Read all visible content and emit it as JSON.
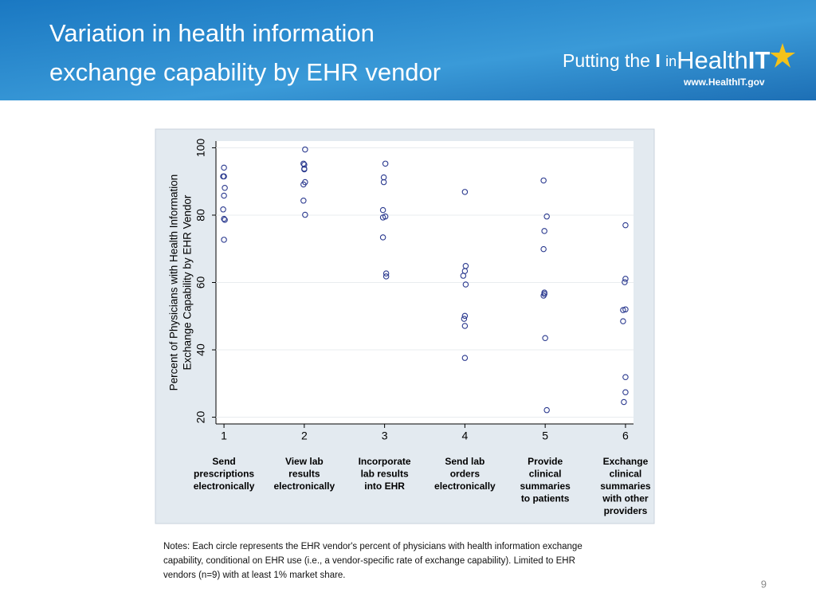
{
  "header": {
    "title": [
      "Variation in health information",
      "exchange capability by EHR vendor"
    ],
    "logo": {
      "putting": "Putting the",
      "i": "I",
      "in": "in",
      "health": "Health",
      "it": "IT",
      "url": "www.HealthIT.gov"
    }
  },
  "chart_data": {
    "type": "scatter",
    "ylabel": [
      "Percent of Physicians with Health Information",
      "Exchange Capability by EHR Vendor"
    ],
    "xlim": [
      0.9,
      6.1
    ],
    "xticks": [
      1,
      2,
      3,
      4,
      5,
      6
    ],
    "ylim": [
      18,
      102
    ],
    "yticks": [
      20,
      40,
      60,
      80,
      100
    ],
    "grid": true,
    "xtick_descriptions": [
      [
        "Send",
        "prescriptions",
        "electronically"
      ],
      [
        "View lab",
        "results",
        "electronically"
      ],
      [
        "Incorporate",
        "lab results",
        "into EHR"
      ],
      [
        "Send lab",
        "orders",
        "electronically"
      ],
      [
        "Provide",
        "clinical",
        "summaries",
        "to patients"
      ],
      [
        "Exchange",
        "clinical",
        "summaries",
        "with other",
        "providers"
      ]
    ],
    "series": [
      {
        "color": "#2b3a8f",
        "x": [
          1.0,
          1.0,
          0.99,
          1.01,
          1.0,
          0.99,
          1.0,
          1.01,
          1.0,
          2.01,
          1.99,
          2.0,
          2.0,
          2.0,
          2.01,
          1.99,
          1.99,
          2.01,
          3.01,
          2.99,
          2.99,
          2.98,
          3.01,
          2.98,
          2.98,
          3.02,
          3.02,
          4.0,
          4.01,
          4.0,
          3.98,
          4.01,
          4.0,
          3.99,
          4.0,
          4.0,
          4.98,
          5.02,
          4.99,
          4.98,
          4.99,
          4.99,
          4.98,
          5.0,
          5.02,
          6.0,
          6.0,
          5.99,
          6.0,
          5.97,
          5.97,
          6.0,
          6.0,
          5.98
        ],
        "values": [
          94.1,
          91.5,
          91.5,
          88.1,
          85.8,
          81.7,
          78.9,
          78.6,
          72.7,
          99.5,
          95.3,
          95.0,
          93.8,
          93.6,
          89.8,
          89.1,
          84.3,
          80.1,
          95.3,
          91.2,
          89.8,
          81.5,
          79.6,
          79.3,
          73.4,
          62.7,
          61.8,
          86.9,
          64.9,
          63.4,
          62.0,
          59.4,
          50.1,
          49.2,
          47.1,
          37.6,
          90.3,
          79.6,
          75.3,
          69.9,
          57.0,
          56.6,
          56.1,
          43.5,
          22.1,
          77.0,
          61.1,
          60.1,
          52.0,
          51.8,
          48.5,
          31.9,
          27.4,
          24.5
        ]
      }
    ]
  },
  "notes": [
    "Notes: Each circle represents the EHR vendor's percent of physicians with health information exchange",
    "capability, conditional on EHR use (i.e., a vendor-specific rate of exchange capability). Limited to EHR",
    "vendors (n=9) with at least 1% market share."
  ],
  "slide_number": "9"
}
